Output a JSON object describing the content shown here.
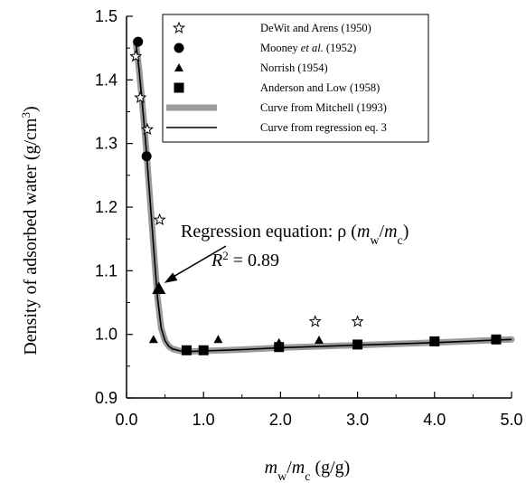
{
  "chart_data": {
    "type": "scatter",
    "title": "",
    "xlabel": {
      "base": "m",
      "sub_w": "w",
      "slash": "/",
      "sub_c": "c",
      "unit": " (g/g)"
    },
    "ylabel": {
      "text": "Density of adsorbed water (g/cm",
      "sup": "3",
      "close": ")"
    },
    "xlim": [
      0.0,
      5.0
    ],
    "ylim": [
      0.9,
      1.5
    ],
    "xticks": [
      0.0,
      1.0,
      2.0,
      3.0,
      4.0,
      5.0
    ],
    "xtick_labels": [
      "0.0",
      "1.0",
      "2.0",
      "3.0",
      "4.0",
      "5.0"
    ],
    "yticks": [
      0.9,
      1.0,
      1.1,
      1.2,
      1.3,
      1.4,
      1.5
    ],
    "ytick_labels": [
      "0.9",
      "1.0",
      "1.1",
      "1.2",
      "1.3",
      "1.4",
      "1.5"
    ],
    "grid": false,
    "legend_position": "top-right",
    "series": [
      {
        "name": "DeWit and Arens (1950)",
        "marker": "star-open",
        "x": [
          0.12,
          0.18,
          0.27,
          0.43,
          2.45,
          3.0
        ],
        "y": [
          1.437,
          1.372,
          1.322,
          1.18,
          1.02,
          1.02
        ]
      },
      {
        "name_parts": [
          "Mooney ",
          "et al.",
          " (1952)"
        ],
        "marker": "circle",
        "x": [
          0.15,
          0.26
        ],
        "y": [
          1.46,
          1.28
        ]
      },
      {
        "name": "Norrish (1954)",
        "marker": "triangle",
        "x": [
          0.35,
          0.42,
          1.19,
          1.98,
          2.5
        ],
        "y": [
          0.992,
          1.072,
          0.992,
          0.987,
          0.991
        ]
      },
      {
        "name": "Anderson and Low (1958)",
        "marker": "square",
        "x": [
          0.78,
          1.0,
          1.98,
          3.0,
          4.0,
          4.8
        ],
        "y": [
          0.975,
          0.975,
          0.98,
          0.984,
          0.989,
          0.992
        ]
      },
      {
        "name": "Curve from Mitchell (1993)",
        "marker": "band",
        "x": [
          0.12,
          0.16,
          0.2,
          0.25,
          0.3,
          0.35,
          0.4,
          0.45,
          0.5,
          0.55,
          0.6,
          0.7,
          0.8,
          1.0,
          1.5,
          2.0,
          3.0,
          4.0,
          5.0
        ],
        "y": [
          1.46,
          1.42,
          1.37,
          1.3,
          1.22,
          1.14,
          1.06,
          1.01,
          0.99,
          0.981,
          0.977,
          0.974,
          0.973,
          0.974,
          0.976,
          0.979,
          0.983,
          0.987,
          0.992
        ]
      },
      {
        "name": "Curve from regression  eq.  3",
        "marker": "line",
        "x": [
          0.12,
          0.16,
          0.2,
          0.25,
          0.3,
          0.35,
          0.4,
          0.45,
          0.5,
          0.55,
          0.6,
          0.7,
          0.8,
          1.0,
          1.5,
          2.0,
          3.0,
          4.0,
          5.0
        ],
        "y": [
          1.46,
          1.42,
          1.37,
          1.3,
          1.22,
          1.14,
          1.06,
          1.01,
          0.99,
          0.981,
          0.977,
          0.974,
          0.973,
          0.974,
          0.976,
          0.979,
          0.983,
          0.987,
          0.992
        ]
      }
    ],
    "annotations": {
      "regression_label": {
        "prefix": "Regression equation:  ρ  (",
        "m1": "m",
        "sub1": "w",
        "slash": "/",
        "m2": "m",
        "sub2": "c",
        "close": ")"
      },
      "r2_label": {
        "r": "R",
        "sup": "2",
        "rest": " = 0.89"
      },
      "arrow_target": {
        "x": 0.42,
        "y": 1.075
      }
    }
  }
}
